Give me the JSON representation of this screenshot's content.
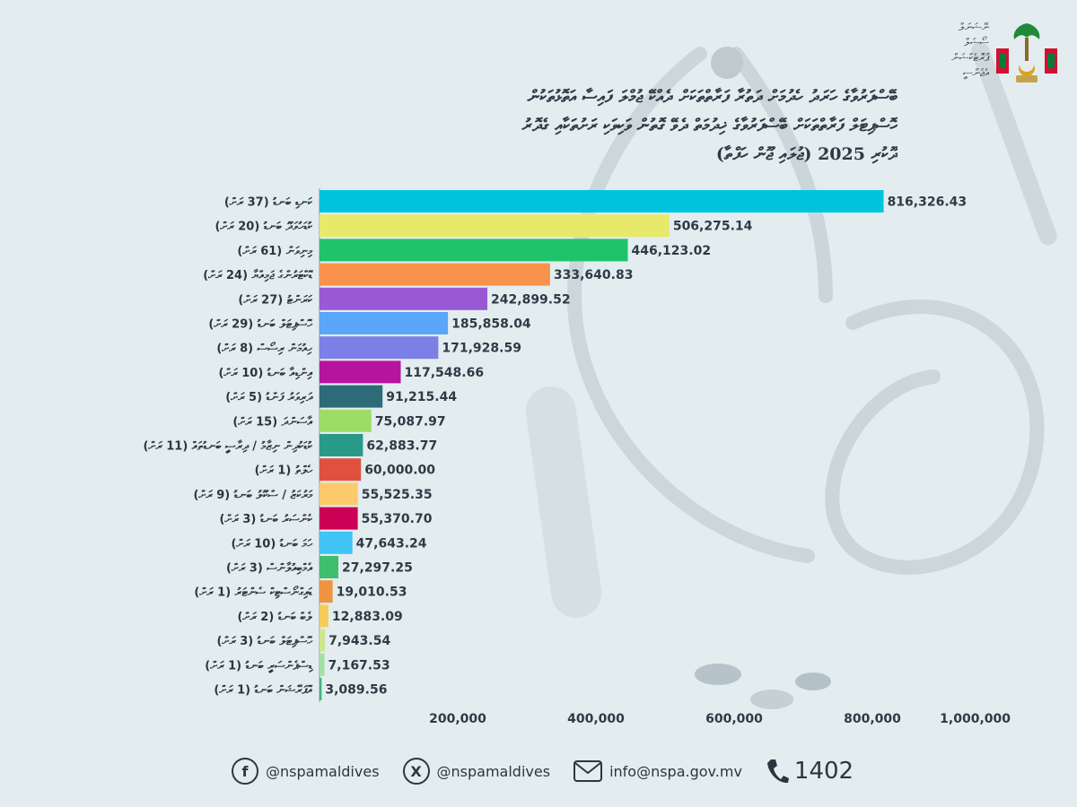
{
  "header": {
    "org_lines": [
      "ނޭޝަނަލް",
      "ސޯޝަލް",
      "ޕްރޮޓެކްޝަން",
      "އެޖެންސީ"
    ],
    "title_lines": [
      "ބޭސްފަރުވާގެ ހަރަދު ހެދުމަށް ދަތުރާ ފަރާތްތަކަށް ދެއްކޭ ޖުމްލަ ފައިސާ އަތޮޅުތަކުން",
      "ހޮސްޕިޓަލް ފަރާތްތަކަށް ބޭސްފަރުވާގެ ޚިދުމަތް ދެވޭ ގޮތުން ވަކިވަކި ރަށުތަކާއި ގެދޮރު",
      "ދޫކުރި 2025 (ޖުލައި ޖޫން ހަފްތާ)"
    ]
  },
  "chart_data": {
    "type": "bar",
    "orientation": "horizontal",
    "categories": [
      "ކަނޑި ބަނޑު (37 ރަށް)",
      "ކުޑަހުވަދޫ ބަނޑު (20 ރަށް)",
      "މިނިވަން (61 ރަށް)",
      "ޑޮކްޓަރުންގެ ޖަމިއްޔާ (24 ރަށް)",
      "ކަރަންޓު (27 ރަށް)",
      "ހޮސްޕިޓަލް ބަނޑު (29 ރަށް)",
      "ހިއުމަން ރިސޯސް (8 ރަށް)",
      "އިންޑިއާ ބަނޑު (10 ރަށް)",
      "ދަރިވަރު ފަންޑު (5 ރަށް)",
      "އާސަންދަ (15 ރަށް)",
      "ކުޑަކުދިން ނިޒާމު / ދިރާސީ ބަނޑުތައް (11 ރަށް)",
      "ހެލްތު (1 ރަށް)",
      "މަރުކަޒު / ސްކޫލު ބަނޑު (9 ރަށް)",
      "ކެންސަރު ބަނޑު (3 ރަށް)",
      "ހަމަ ބަނޑު (10 ރަށް)",
      "އެމްބިއުލާންސް (3 ރަށް)",
      "ޑައިގްނޯސްޓިކް ސެންޓަރު (1 ރަށް)",
      "ލެބް ބަނޑު (2 ރަށް)",
      "ހޮސްޕިޓަލް ބަނޑު (3 ރަށް)",
      "ޑިސްޕެންސަރީ ބަނޑު (1 ރަށް)",
      "އޮޕަރޭޝަން ބަނޑު (1 ރަށް)"
    ],
    "values": [
      816326.43,
      506275.14,
      446123.02,
      333640.83,
      242899.52,
      185858.04,
      171928.59,
      117548.66,
      91215.44,
      75087.97,
      62883.77,
      60000.0,
      55525.35,
      55370.7,
      47643.24,
      27297.25,
      19010.53,
      12883.09,
      7943.54,
      7167.53,
      3089.56
    ],
    "value_labels": [
      "816,326.43",
      "506,275.14",
      "446,123.02",
      "333,640.83",
      "242,899.52",
      "185,858.04",
      "171,928.59",
      "117,548.66",
      "91,215.44",
      "75,087.97",
      "62,883.77",
      "60,000.00",
      "55,525.35",
      "55,370.70",
      "47,643.24",
      "27,297.25",
      "19,010.53",
      "12,883.09",
      "7,943.54",
      "7,167.53",
      "3,089.56"
    ],
    "colors": [
      "#00c4dd",
      "#e8e96a",
      "#1fc46a",
      "#f8924c",
      "#9a59d4",
      "#5aa6f8",
      "#7b7fe6",
      "#b6149e",
      "#2d6b78",
      "#9ddd66",
      "#2a9a88",
      "#e0503f",
      "#fdca6b",
      "#cc0055",
      "#40c4f6",
      "#3fbe6e",
      "#ee9340",
      "#f6cc59",
      "#cde78c",
      "#a5e0a3",
      "#44b47c"
    ],
    "xlim": [
      0,
      1000000
    ],
    "xticks": [
      200000,
      400000,
      600000,
      800000,
      1000000
    ],
    "xtick_labels": [
      "200,000",
      "400,000",
      "600,000",
      "800,000",
      "1,000,000"
    ],
    "grid": false,
    "legend": "none"
  },
  "footer": {
    "facebook_handle": "@nspamaldives",
    "x_handle": "@nspamaldives",
    "email": "info@nspa.gov.mv",
    "hotline": "1402"
  },
  "colors": {
    "background": "#e3edf0",
    "text": "#1f2a33"
  }
}
